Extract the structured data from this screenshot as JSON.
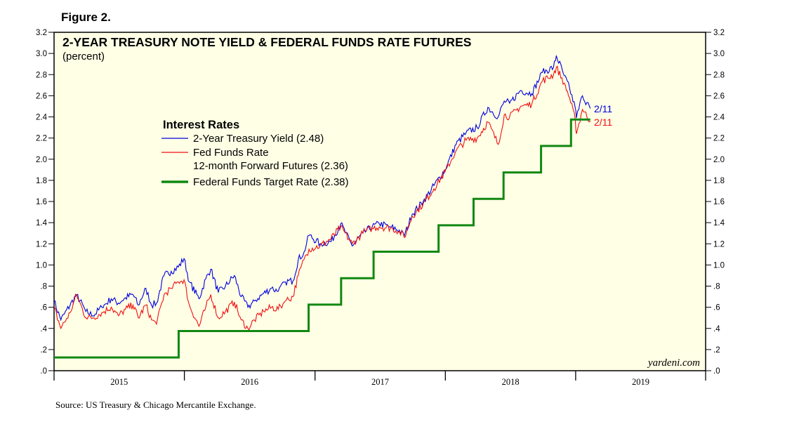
{
  "figure_label": "Figure 2.",
  "source_note": "Source: US Treasury & Chicago Mercantile Exchange.",
  "watermark": "yardeni.com",
  "colors": {
    "plot_background": "#ffffe6",
    "treasury": "#0000dd",
    "futures": "#ee1111",
    "target": "#118811"
  },
  "chart_data": {
    "type": "line",
    "title": "2-YEAR TREASURY NOTE YIELD & FEDERAL FUNDS RATE FUTURES",
    "subtitle": "(percent)",
    "xlabel": "",
    "ylabel": "",
    "xlim": [
      "2015-01-01",
      "2019-12-31"
    ],
    "ylim": [
      0,
      3.2
    ],
    "x_tick_labels": [
      "2015",
      "2016",
      "2017",
      "2018",
      "2019"
    ],
    "y_tick_values": [
      0,
      0.2,
      0.4,
      0.6,
      0.8,
      1.0,
      1.2,
      1.4,
      1.6,
      1.8,
      2.0,
      2.2,
      2.4,
      2.6,
      2.8,
      3.0,
      3.2
    ],
    "y_tick_labels": [
      ".0",
      ".2",
      ".4",
      ".6",
      ".8",
      "1.0",
      "1.2",
      "1.4",
      "1.6",
      "1.8",
      "2.0",
      "2.2",
      "2.4",
      "2.6",
      "2.8",
      "3.0",
      "3.2"
    ],
    "grid": false,
    "legend": {
      "title": "Interest Rates",
      "placement": "upper-left",
      "entries": [
        [
          "2-Year Treasury Yield (2.48)"
        ],
        [
          "Fed Funds Rate",
          "12-month Forward Futures (2.36)"
        ],
        [
          "Federal Funds Target Rate (2.38)"
        ]
      ]
    },
    "end_labels": {
      "treasury": "2/11",
      "futures": "2/11"
    },
    "series": [
      {
        "key": "treasury",
        "x": [
          "2015-01-01",
          "2015-01-20",
          "2015-02-15",
          "2015-03-05",
          "2015-03-31",
          "2015-04-20",
          "2015-05-15",
          "2015-06-10",
          "2015-06-30",
          "2015-07-20",
          "2015-08-10",
          "2015-08-25",
          "2015-09-15",
          "2015-10-01",
          "2015-10-15",
          "2015-11-05",
          "2015-11-25",
          "2015-12-15",
          "2015-12-31",
          "2016-01-15",
          "2016-02-11",
          "2016-03-01",
          "2016-03-15",
          "2016-04-05",
          "2016-04-25",
          "2016-05-20",
          "2016-06-08",
          "2016-06-27",
          "2016-07-15",
          "2016-08-10",
          "2016-09-01",
          "2016-09-20",
          "2016-10-10",
          "2016-10-31",
          "2016-11-15",
          "2016-12-01",
          "2016-12-15",
          "2017-01-15",
          "2017-02-15",
          "2017-03-14",
          "2017-04-15",
          "2017-05-15",
          "2017-06-10",
          "2017-06-30",
          "2017-07-31",
          "2017-08-25",
          "2017-09-08",
          "2017-09-30",
          "2017-10-31",
          "2017-11-30",
          "2017-12-31",
          "2018-01-31",
          "2018-02-28",
          "2018-03-31",
          "2018-04-30",
          "2018-05-29",
          "2018-06-15",
          "2018-06-30",
          "2018-07-31",
          "2018-08-31",
          "2018-09-30",
          "2018-10-31",
          "2018-11-08",
          "2018-11-30",
          "2018-12-15",
          "2018-12-31",
          "2019-01-03",
          "2019-01-20",
          "2019-02-11"
        ],
        "y": [
          0.66,
          0.48,
          0.62,
          0.72,
          0.56,
          0.52,
          0.6,
          0.68,
          0.64,
          0.69,
          0.72,
          0.62,
          0.78,
          0.62,
          0.64,
          0.9,
          0.94,
          0.98,
          1.06,
          0.84,
          0.68,
          0.87,
          0.96,
          0.74,
          0.8,
          0.9,
          0.7,
          0.6,
          0.66,
          0.73,
          0.78,
          0.75,
          0.84,
          0.85,
          1.05,
          1.12,
          1.28,
          1.2,
          1.22,
          1.39,
          1.18,
          1.3,
          1.36,
          1.39,
          1.36,
          1.33,
          1.27,
          1.48,
          1.6,
          1.75,
          1.9,
          2.14,
          2.25,
          2.3,
          2.49,
          2.4,
          2.55,
          2.53,
          2.65,
          2.62,
          2.82,
          2.87,
          2.98,
          2.79,
          2.67,
          2.48,
          2.39,
          2.6,
          2.48
        ]
      },
      {
        "key": "futures",
        "x": [
          "2015-01-01",
          "2015-01-20",
          "2015-02-15",
          "2015-03-05",
          "2015-03-31",
          "2015-04-20",
          "2015-05-15",
          "2015-06-10",
          "2015-06-30",
          "2015-07-20",
          "2015-08-10",
          "2015-08-25",
          "2015-09-15",
          "2015-10-01",
          "2015-10-15",
          "2015-11-05",
          "2015-11-25",
          "2015-12-15",
          "2015-12-31",
          "2016-01-15",
          "2016-02-11",
          "2016-03-01",
          "2016-03-15",
          "2016-04-05",
          "2016-04-25",
          "2016-05-20",
          "2016-06-08",
          "2016-06-27",
          "2016-07-15",
          "2016-08-10",
          "2016-09-01",
          "2016-09-20",
          "2016-10-10",
          "2016-10-31",
          "2016-11-15",
          "2016-12-01",
          "2016-12-15",
          "2017-01-15",
          "2017-02-15",
          "2017-03-14",
          "2017-04-15",
          "2017-05-15",
          "2017-06-10",
          "2017-06-30",
          "2017-07-31",
          "2017-08-25",
          "2017-09-08",
          "2017-09-30",
          "2017-10-31",
          "2017-11-30",
          "2017-12-31",
          "2018-01-31",
          "2018-02-28",
          "2018-03-31",
          "2018-04-30",
          "2018-05-29",
          "2018-06-15",
          "2018-06-30",
          "2018-07-31",
          "2018-08-31",
          "2018-09-30",
          "2018-10-31",
          "2018-11-08",
          "2018-11-30",
          "2018-12-15",
          "2018-12-31",
          "2019-01-03",
          "2019-01-20",
          "2019-02-11"
        ],
        "y": [
          0.6,
          0.4,
          0.55,
          0.72,
          0.5,
          0.5,
          0.55,
          0.6,
          0.52,
          0.58,
          0.62,
          0.5,
          0.62,
          0.48,
          0.44,
          0.72,
          0.78,
          0.84,
          0.86,
          0.62,
          0.42,
          0.6,
          0.72,
          0.5,
          0.56,
          0.65,
          0.48,
          0.4,
          0.48,
          0.56,
          0.6,
          0.58,
          0.66,
          0.7,
          0.9,
          1.05,
          1.15,
          1.18,
          1.25,
          1.36,
          1.2,
          1.3,
          1.35,
          1.36,
          1.35,
          1.32,
          1.26,
          1.46,
          1.58,
          1.72,
          1.88,
          2.08,
          2.18,
          2.2,
          2.35,
          2.14,
          2.42,
          2.4,
          2.5,
          2.52,
          2.74,
          2.8,
          2.87,
          2.72,
          2.58,
          2.37,
          2.24,
          2.47,
          2.36
        ]
      },
      {
        "key": "target",
        "step": true,
        "x": [
          "2015-01-01",
          "2015-12-16",
          "2016-12-14",
          "2017-03-15",
          "2017-06-14",
          "2017-12-13",
          "2018-03-21",
          "2018-06-13",
          "2018-09-26",
          "2018-12-19",
          "2019-02-11"
        ],
        "y": [
          0.125,
          0.375,
          0.625,
          0.875,
          1.125,
          1.375,
          1.625,
          1.875,
          2.125,
          2.375,
          2.375
        ]
      }
    ]
  }
}
